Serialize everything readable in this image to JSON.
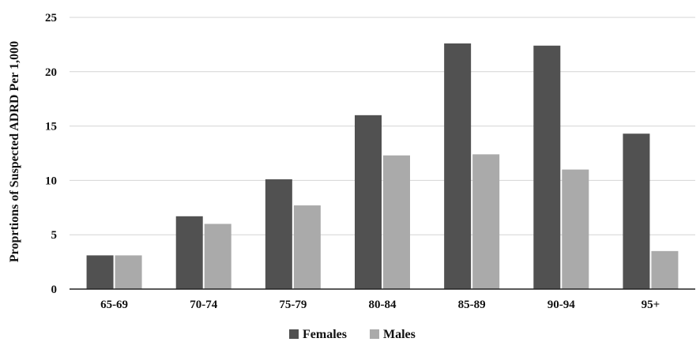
{
  "chart_data": {
    "type": "bar",
    "title": "",
    "xlabel": "",
    "ylabel": "Proprtions of Suspected ADRD Per 1,000",
    "ylim": [
      0,
      25
    ],
    "yticks": [
      0,
      5,
      10,
      15,
      20,
      25
    ],
    "grid": true,
    "legend_position": "bottom",
    "categories": [
      "65-69",
      "70-74",
      "75-79",
      "80-84",
      "85-89",
      "90-94",
      "95+"
    ],
    "series": [
      {
        "name": "Females",
        "color": "#515151",
        "values": [
          3.1,
          6.7,
          10.1,
          16.0,
          22.6,
          22.4,
          14.3
        ]
      },
      {
        "name": "Males",
        "color": "#aaaaaa",
        "values": [
          3.1,
          6.0,
          7.7,
          12.3,
          12.4,
          11.0,
          3.5
        ]
      }
    ]
  }
}
